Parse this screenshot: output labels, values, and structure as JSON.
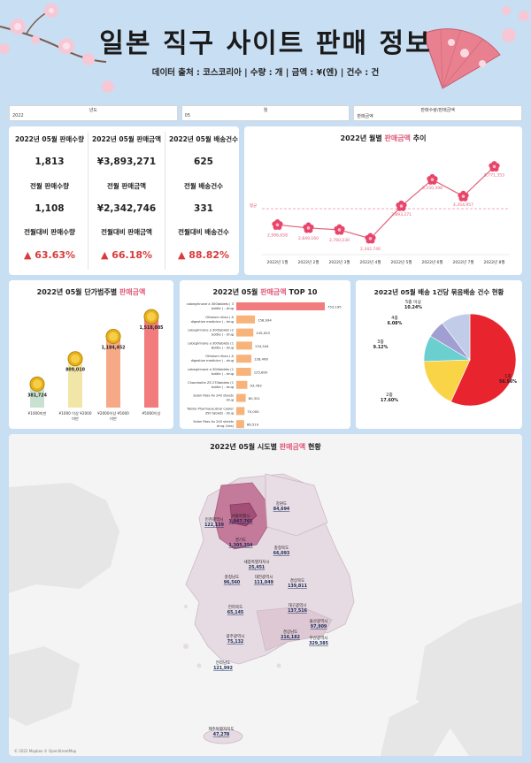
{
  "header": {
    "title": "일본 직구 사이트 판매 정보",
    "subtitle": "데이터 출처 : 코스코리아 | 수량 : 개 | 금액 : ¥(엔) | 건수 : 건"
  },
  "filters": [
    {
      "label": "년도",
      "value": "2022"
    },
    {
      "label": "월",
      "value": "05"
    },
    {
      "label": "판매수량/판매금액",
      "value": "판매금액"
    }
  ],
  "kpis": [
    {
      "label": "2022년 05월 판매수량",
      "value": "1,813"
    },
    {
      "label": "2022년 05월 판매금액",
      "value": "¥3,893,271"
    },
    {
      "label": "2022년 05월 배송건수",
      "value": "625"
    },
    {
      "label": "전월 판매수량",
      "value": "1,108"
    },
    {
      "label": "전월 판매금액",
      "value": "¥2,342,746"
    },
    {
      "label": "전월 배송건수",
      "value": "331"
    },
    {
      "label": "전월대비 판매수량",
      "value": "▲ 63.63%"
    },
    {
      "label": "전월대비 판매금액",
      "value": "▲ 66.18%"
    },
    {
      "label": "전월대비 배송건수",
      "value": "▲ 88.82%"
    }
  ],
  "colors": {
    "accent": "#e05a7a",
    "up": "#d93b3b",
    "line": "#e0617a",
    "bar": "#f7b37a",
    "pie1": "#e8242f",
    "pie2": "#fad447",
    "pie3": "#6bcfd0",
    "pie4": "#a19fd1",
    "pie5": "#c1cce8"
  },
  "chart_data": [
    {
      "type": "line",
      "title_prefix": "2022년 월별 ",
      "title_hl": "판매금액",
      "title_suffix": " 추이",
      "avg_label": "평균",
      "categories": [
        "2022년 1월",
        "2022년 2월",
        "2022년 3월",
        "2022년 4월",
        "2022년 5월",
        "2022년 6월",
        "2022년 7월",
        "2022년 8월"
      ],
      "values": [
        2996658,
        2849160,
        2760230,
        2342746,
        3893271,
        5150398,
        4354957,
        5771353
      ],
      "value_labels": [
        "2,996,658",
        "2,849,160",
        "2,760,230",
        "2,342,746",
        "3,893,271",
        "5,150,398",
        "4,354,957",
        "5,771,353"
      ]
    },
    {
      "type": "bar",
      "title_prefix": "2022년 05월 단가범주별 ",
      "title_hl": "판매금액",
      "categories": [
        "¥1000미만",
        "¥1000 이상 ¥2000 미만",
        "¥2000이상 ¥5000 미만",
        "¥5000이상"
      ],
      "category_lines": [
        [
          "¥1000미만"
        ],
        [
          "¥1000 이상 ¥2000",
          "미만"
        ],
        [
          "¥2000이상 ¥5000",
          "미만"
        ],
        [
          "¥5000이상"
        ]
      ],
      "values": [
        381724,
        809010,
        1184452,
        1518085
      ],
      "value_labels": [
        "381,724",
        "809,010",
        "1,184,452",
        "1,518,085"
      ],
      "colors": [
        "#c9e2d0",
        "#f1e6a8",
        "#f6a987",
        "#f27b7e"
      ]
    },
    {
      "type": "bar",
      "orientation": "horizontal",
      "title_prefix": "2022년 05월 ",
      "title_hl": "판매금액",
      "title_suffix": " TOP 10",
      "categories": [
        [
          "cabegirinone a 300tablets ( 3",
          "bottle ) - drug"
        ],
        [
          "Ohtaium ribsu ( A",
          "digestive medicine ) - drug"
        ],
        [
          "cabegirinone a 300tablets (2",
          "bottle ) - drug"
        ],
        [
          "cabegirinone a 300tablets (1",
          "Bottle ) - drug"
        ],
        [
          "Ohtaium ribsu ( A",
          "digestive medicine ) - drug"
        ],
        [
          "cabegirinone a 300tablets (1",
          "bottle ) - drug"
        ],
        [
          "Chondroitin ZS 270tablets (1",
          "bottle ) - drug"
        ],
        [
          "Salon Pass Ax 240 sheets",
          "drug"
        ],
        [
          "Taisho Pharmaceutical Cooler",
          "350 tablets - drug"
        ],
        [
          "Salon Pass Ax 240 sheets",
          "drug (1ea)"
        ]
      ],
      "values": [
        753195,
        158994,
        145003,
        134544,
        128406,
        125800,
        93783,
        80321,
        70000,
        66519
      ],
      "value_labels": [
        "753,195",
        "158,994",
        "145,003",
        "134,544",
        "128,406",
        "125,800",
        "93,783",
        "80,321",
        "70,000",
        "66,519"
      ]
    },
    {
      "type": "pie",
      "title": "2022년 05월 배송 1건당 묶음배송 건수 현황",
      "labels": [
        "1종",
        "2종",
        "3종",
        "4종",
        "5종 이상"
      ],
      "values": [
        56.56,
        17.6,
        9.12,
        6.08,
        10.24
      ],
      "value_labels": [
        "56.56%",
        "17.60%",
        "9.12%",
        "6.08%",
        "10.24%"
      ]
    }
  ],
  "map": {
    "title_prefix": "2022년 05월 시도별 ",
    "title_hl": "판매금액",
    "title_suffix": " 현황",
    "attribution": "© 2022 Mapbox © OpenStreetMap",
    "regions": [
      {
        "name": "서울특별시",
        "value": "1,047,761"
      },
      {
        "name": "인천광역시",
        "value": "122,139"
      },
      {
        "name": "경기도",
        "value": "1,305,354"
      },
      {
        "name": "강원도",
        "value": "84,694"
      },
      {
        "name": "충청북도",
        "value": "66,093"
      },
      {
        "name": "세종특별자치시",
        "value": "25,451"
      },
      {
        "name": "충청남도",
        "value": "96,560"
      },
      {
        "name": "대전광역시",
        "value": "111,049"
      },
      {
        "name": "경상북도",
        "value": "139,811"
      },
      {
        "name": "전라북도",
        "value": "65,145"
      },
      {
        "name": "대구광역시",
        "value": "137,516"
      },
      {
        "name": "울산광역시",
        "value": "97,909"
      },
      {
        "name": "광주광역시",
        "value": "75,132"
      },
      {
        "name": "경상남도",
        "value": "216,182"
      },
      {
        "name": "부산광역시",
        "value": "329,385"
      },
      {
        "name": "전라남도",
        "value": "121,992"
      },
      {
        "name": "제주특별자치도",
        "value": "47,278"
      }
    ]
  }
}
